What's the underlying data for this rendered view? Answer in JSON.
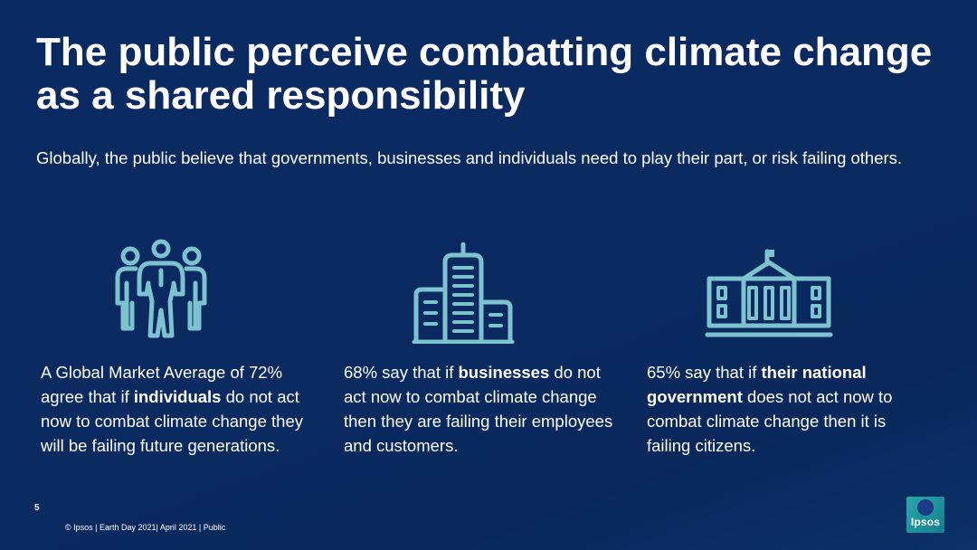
{
  "slide": {
    "title": "The public perceive combatting climate change as a shared responsibility",
    "subtitle": "Globally, the public believe that governments, businesses and individuals need to play their part, or risk failing others.",
    "icon_color": "#7cc3cf",
    "statements": [
      {
        "icon": "people-group-icon",
        "before": "A Global Market Average of 72% agree that if ",
        "bold": "individuals",
        "after": " do not act now to combat climate change they will be failing future generations."
      },
      {
        "icon": "office-building-icon",
        "before": "68% say that if ",
        "bold": "businesses",
        "after": " do not act now to combat climate change then they are failing their employees and customers."
      },
      {
        "icon": "government-building-icon",
        "before": "65% say that if ",
        "bold": "their national government",
        "after": " does not act now to combat climate change then it is failing citizens."
      }
    ],
    "page_number": "5",
    "footer": "© Ipsos | Earth Day  2021| April 2021 | Public",
    "logo_text": "Ipsos"
  }
}
